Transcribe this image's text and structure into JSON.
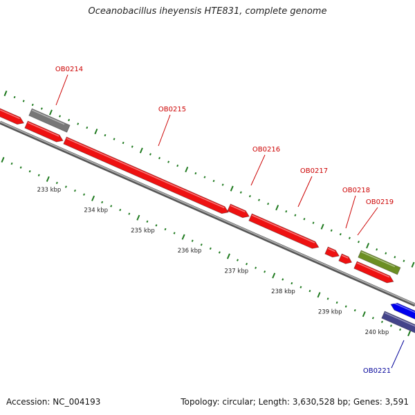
{
  "title": "Oceanobacillus iheyensis HTE831, complete genome",
  "footer": {
    "accession": "Accession: NC_004193",
    "summary": "Topology: circular; Length: 3,630,528 bp; Genes: 3,591"
  },
  "scale_labels": [
    "233 kbp",
    "234 kbp",
    "235 kbp",
    "236 kbp",
    "237 kbp",
    "238 kbp",
    "239 kbp",
    "240 kbp"
  ],
  "gene_labels": [
    {
      "name": "OB0214",
      "color": "#cc0000"
    },
    {
      "name": "OB0215",
      "color": "#cc0000"
    },
    {
      "name": "OB0216",
      "color": "#cc0000"
    },
    {
      "name": "OB0217",
      "color": "#cc0000"
    },
    {
      "name": "OB0218",
      "color": "#cc0000"
    },
    {
      "name": "OB0219",
      "color": "#cc0000"
    },
    {
      "name": "OB0221",
      "color": "#000099"
    }
  ],
  "colors": {
    "gene_forward": "#ee1111",
    "gene_gray": "#777777",
    "gene_green": "#6b8e23",
    "gene_blue": "#0000ee",
    "gene_navy": "#44448a",
    "backbone": "#888888",
    "tick": "#1f7a1f"
  }
}
